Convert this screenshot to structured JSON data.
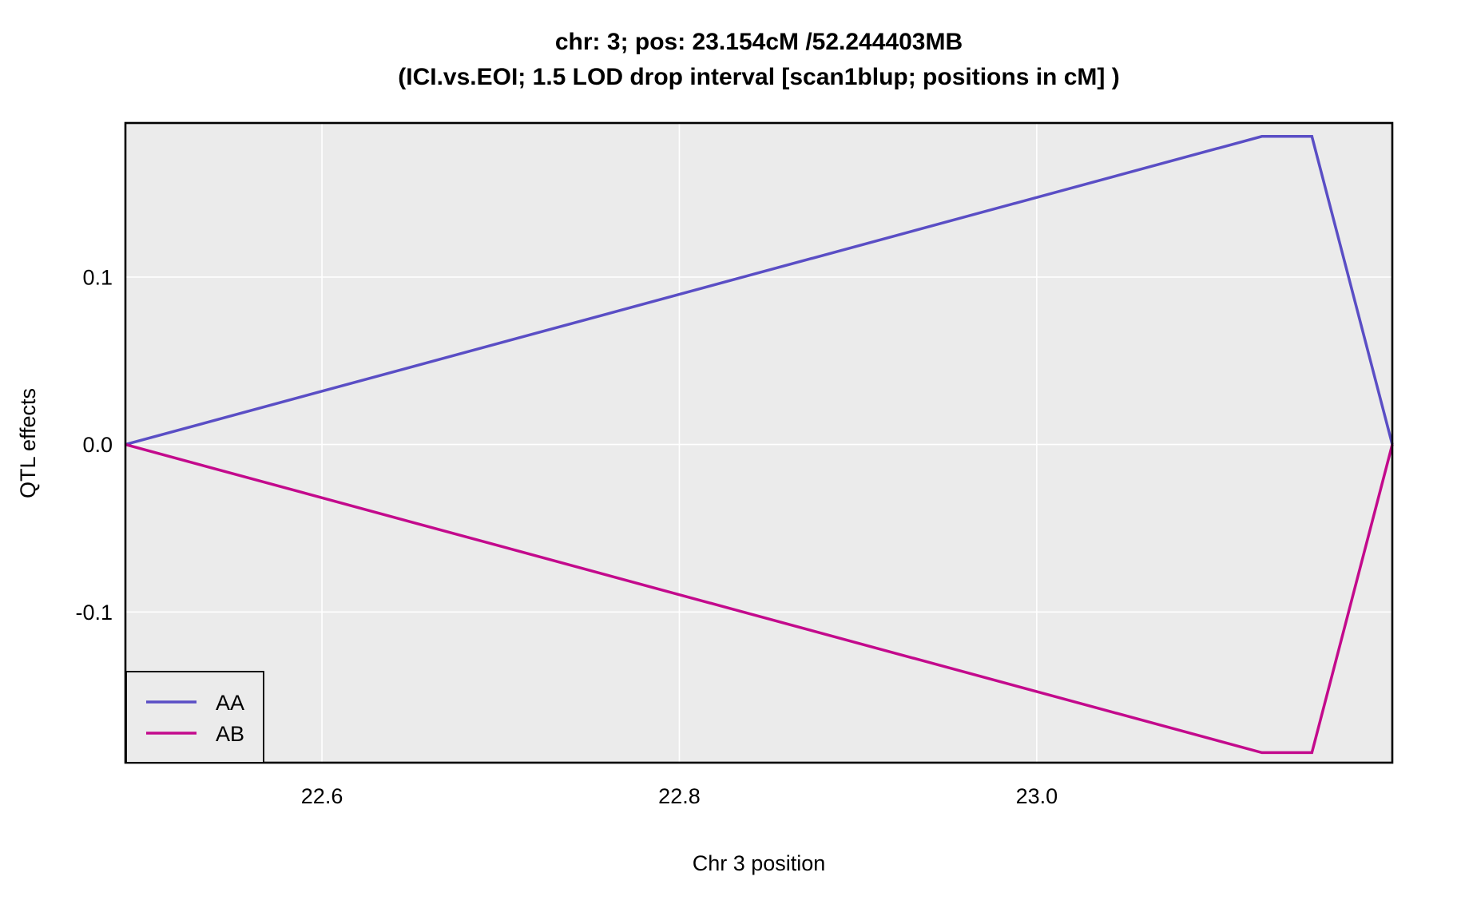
{
  "figure": {
    "background": "#FFFFFF",
    "panel_background": "#EBEBEB",
    "panel_border_color": "#000000",
    "gridline_color": "#FFFFFF"
  },
  "chart_data": {
    "type": "line",
    "title": "chr: 3; pos: 23.154cM /52.244403MB",
    "subtitle": "(ICI.vs.EOI; 1.5 LOD drop interval [scan1blup; positions in cM] )",
    "xlabel": "Chr 3 position",
    "ylabel": "QTL effects",
    "xlim": [
      22.49,
      23.199
    ],
    "ylim": [
      -0.19,
      0.192
    ],
    "x_ticks": [
      22.6,
      22.8,
      23.0
    ],
    "x_tick_labels": [
      "22.6",
      "22.8",
      "23.0"
    ],
    "y_ticks": [
      0.1,
      0.0,
      -0.1
    ],
    "y_tick_labels": [
      "0.1",
      "0.0",
      "-0.1"
    ],
    "grid": "major gridlines only, white on gray panel",
    "legend_position": "bottom-left inside panel, boxed",
    "x": [
      22.49,
      23.126,
      23.154,
      23.199
    ],
    "series": [
      {
        "name": "AA",
        "color": "#5A4EC5",
        "values": [
          0.0,
          0.184,
          0.184,
          0.0
        ]
      },
      {
        "name": "AB",
        "color": "#C30A8C",
        "values": [
          0.0,
          -0.184,
          -0.184,
          0.0
        ]
      }
    ]
  }
}
